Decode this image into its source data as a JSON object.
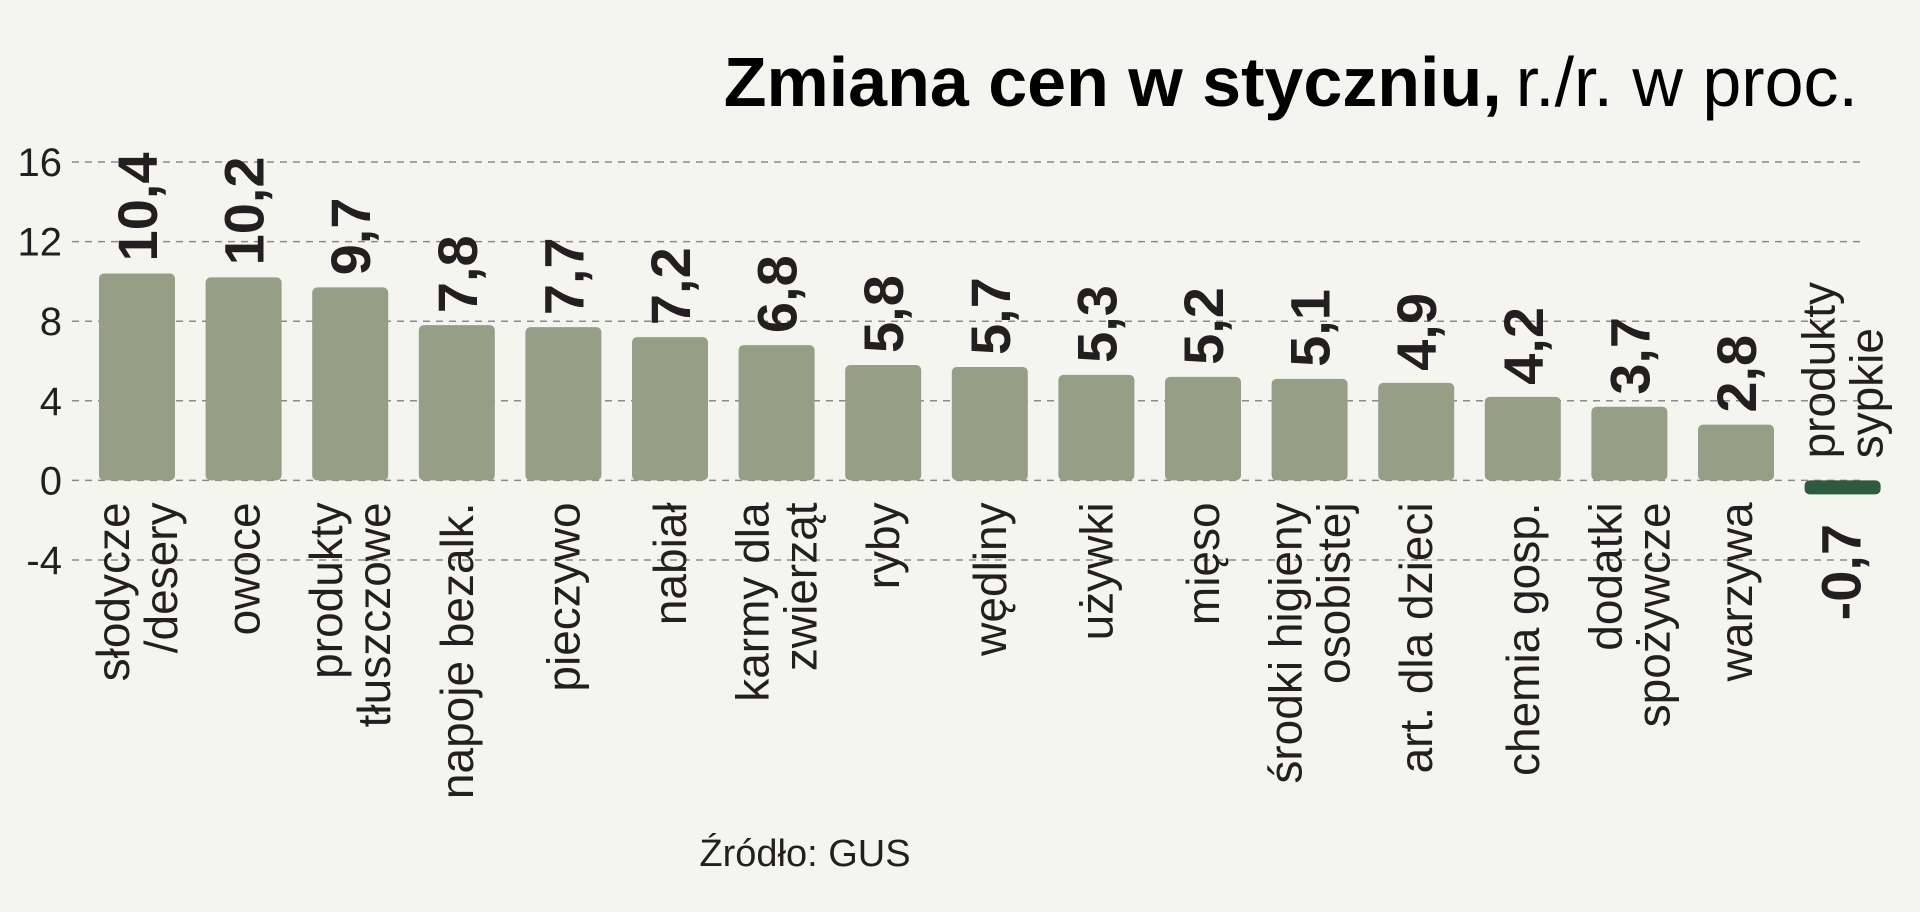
{
  "chart_data": {
    "type": "bar",
    "title": "Zmiana cen w styczniu,",
    "subtitle": "r./r. w proc.",
    "source": "Źródło: GUS",
    "ylim": [
      -4,
      16
    ],
    "yticks": [
      16,
      12,
      8,
      4,
      0,
      -4
    ],
    "grid": true,
    "categories": [
      [
        "słodycze",
        "/desery"
      ],
      [
        "owoce"
      ],
      [
        "produkty",
        "tłuszczowe"
      ],
      [
        "napoje bezalk."
      ],
      [
        "pieczywo"
      ],
      [
        "nabiał"
      ],
      [
        "karmy dla",
        "zwierząt"
      ],
      [
        "ryby"
      ],
      [
        "wędliny"
      ],
      [
        "używki"
      ],
      [
        "mięso"
      ],
      [
        "środki higieny",
        "osobistej"
      ],
      [
        "art. dla dzieci"
      ],
      [
        "chemia gosp."
      ],
      [
        "dodatki",
        "spożywcze"
      ],
      [
        "warzywa"
      ],
      [
        "produkty",
        "sypkie"
      ]
    ],
    "values": [
      10.4,
      10.2,
      9.7,
      7.8,
      7.7,
      7.2,
      6.8,
      5.8,
      5.7,
      5.3,
      5.2,
      5.1,
      4.9,
      4.2,
      3.7,
      2.8,
      -0.7
    ],
    "value_labels": [
      "10,4",
      "10,2",
      "9,7",
      "7,8",
      "7,7",
      "7,2",
      "6,8",
      "5,8",
      "5,7",
      "5,3",
      "5,2",
      "5,1",
      "4,9",
      "4,2",
      "3,7",
      "2,8",
      "-0,7"
    ],
    "colors": {
      "positive": "#959f85",
      "negative": "#2e5a3e",
      "grid": "#8a8a8a",
      "text": "#231f20"
    }
  }
}
